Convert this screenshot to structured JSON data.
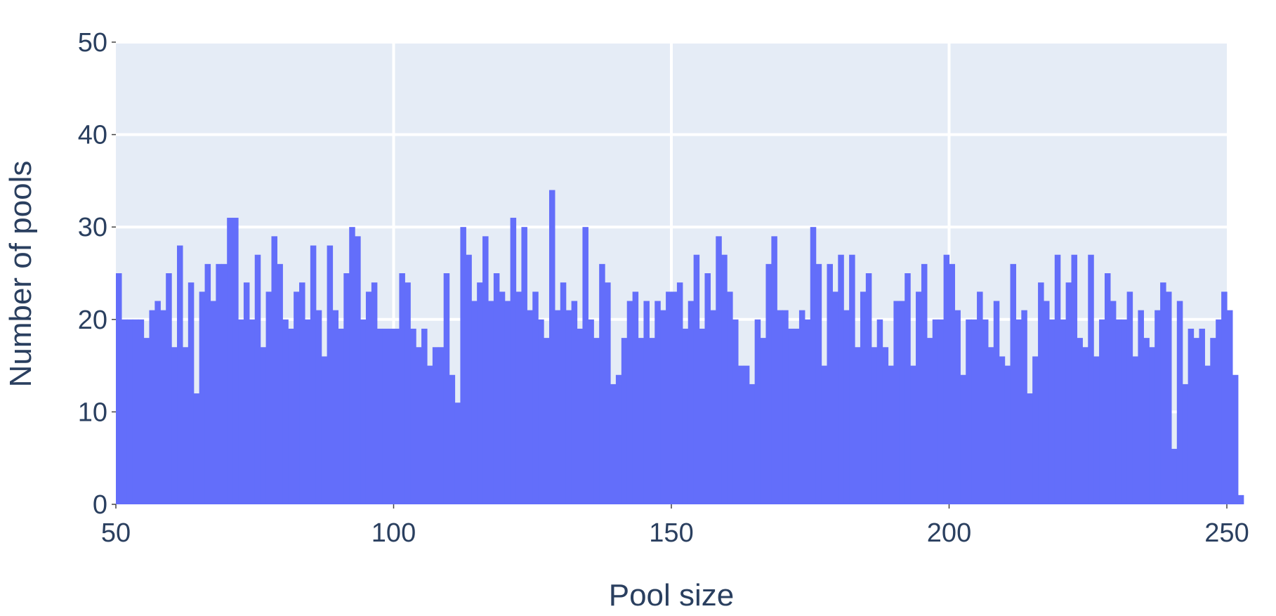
{
  "chart_data": {
    "type": "bar",
    "title": "",
    "xlabel": "Pool size",
    "ylabel": "Number of pools",
    "xlim": [
      50,
      250
    ],
    "ylim": [
      0,
      50
    ],
    "x_ticks": [
      "50",
      "100",
      "150",
      "200",
      "250"
    ],
    "y_ticks": [
      "0",
      "10",
      "20",
      "30",
      "40",
      "50"
    ],
    "grid": true,
    "bin_start": 50,
    "bin_width": 1,
    "values": [
      25,
      20,
      20,
      20,
      20,
      18,
      21,
      22,
      21,
      25,
      17,
      28,
      17,
      24,
      12,
      23,
      26,
      22,
      26,
      26,
      31,
      31,
      20,
      24,
      20,
      27,
      17,
      23,
      29,
      26,
      20,
      19,
      23,
      24,
      20,
      28,
      21,
      16,
      28,
      21,
      19,
      25,
      30,
      29,
      20,
      23,
      24,
      19,
      19,
      19,
      19,
      25,
      24,
      19,
      17,
      19,
      15,
      17,
      17,
      25,
      14,
      11,
      30,
      27,
      22,
      24,
      29,
      22,
      25,
      23,
      22,
      31,
      23,
      30,
      21,
      23,
      20,
      18,
      34,
      21,
      24,
      21,
      22,
      19,
      30,
      20,
      18,
      26,
      24,
      13,
      14,
      18,
      22,
      23,
      18,
      22,
      18,
      22,
      21,
      23,
      23,
      24,
      19,
      22,
      27,
      19,
      25,
      21,
      29,
      27,
      23,
      20,
      15,
      15,
      13,
      20,
      18,
      26,
      29,
      21,
      21,
      19,
      19,
      21,
      20,
      30,
      26,
      15,
      26,
      23,
      27,
      21,
      27,
      17,
      23,
      25,
      17,
      20,
      17,
      15,
      22,
      22,
      25,
      15,
      23,
      26,
      18,
      20,
      20,
      27,
      26,
      21,
      14,
      20,
      20,
      23,
      20,
      17,
      22,
      16,
      15,
      26,
      20,
      21,
      12,
      16,
      24,
      22,
      20,
      27,
      20,
      24,
      27,
      18,
      17,
      27,
      16,
      20,
      25,
      22,
      20,
      20,
      23,
      16,
      21,
      18,
      17,
      21,
      24,
      23,
      6,
      22,
      13,
      19,
      18,
      19,
      15,
      18,
      20,
      23,
      21,
      14,
      1
    ],
    "colors": {
      "bar": "#636efa",
      "plot_bg": "#e5ecf6",
      "grid": "#ffffff",
      "text": "#2a3f5f"
    }
  }
}
